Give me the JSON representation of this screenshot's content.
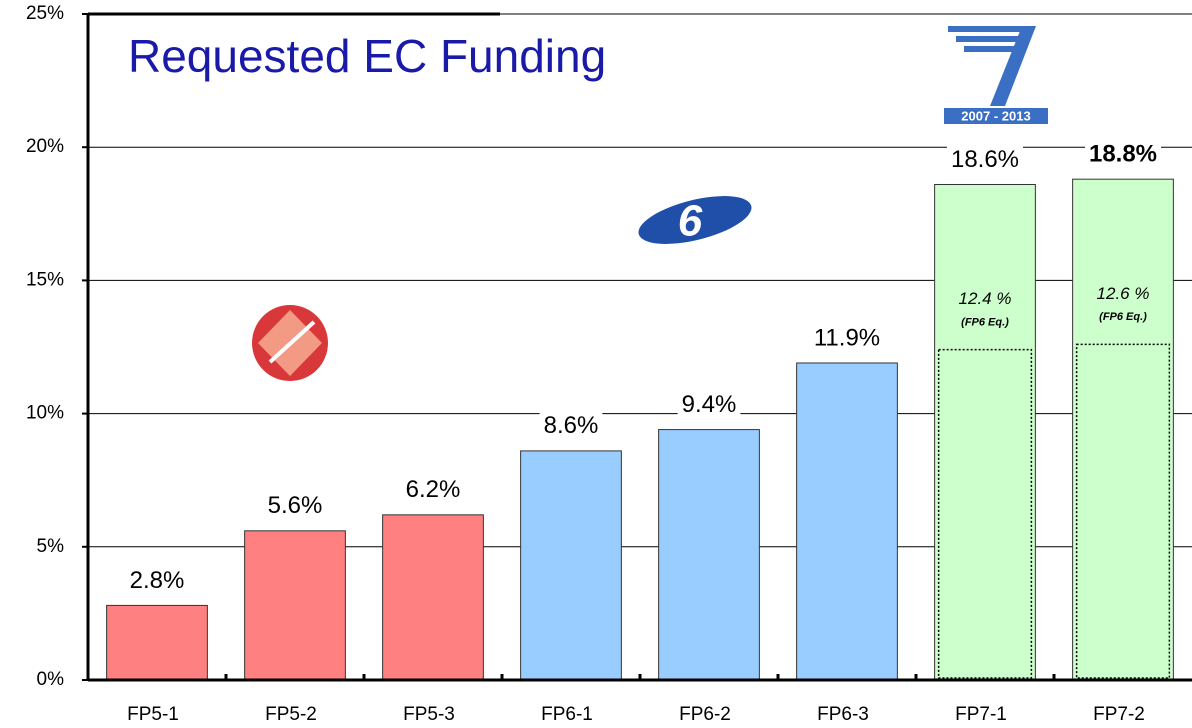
{
  "chart_data": {
    "type": "bar",
    "title": "Requested EC Funding",
    "categories": [
      "FP5-1",
      "FP5-2",
      "FP5-3",
      "FP6-1",
      "FP6-2",
      "FP6-3",
      "FP7-1",
      "FP7-2"
    ],
    "values": [
      2.8,
      5.6,
      6.2,
      8.6,
      9.4,
      11.9,
      18.6,
      18.8
    ],
    "value_labels": [
      "2.8%",
      "5.6%",
      "6.2%",
      "8.6%",
      "9.4%",
      "11.9%",
      "18.6%",
      "18.8%"
    ],
    "colors": [
      "#ff8080",
      "#ff8080",
      "#ff8080",
      "#99ccff",
      "#99ccff",
      "#99ccff",
      "#ccffcc",
      "#ccffcc"
    ],
    "fp6_equivalent": {
      "values": [
        null,
        null,
        null,
        null,
        null,
        null,
        12.4,
        12.6
      ],
      "value_labels": [
        null,
        null,
        null,
        null,
        null,
        null,
        "12.4 %",
        "12.6 %"
      ],
      "note": "(FP6 Eq.)"
    },
    "ylim": [
      0,
      25
    ],
    "yticks": [
      {
        "value": 0,
        "label": "0%"
      },
      {
        "value": 5,
        "label": "5%"
      },
      {
        "value": 10,
        "label": "10%"
      },
      {
        "value": 15,
        "label": "15%"
      },
      {
        "value": 20,
        "label": "20%"
      },
      {
        "value": 25,
        "label": "25%"
      }
    ],
    "grid": true
  }
}
